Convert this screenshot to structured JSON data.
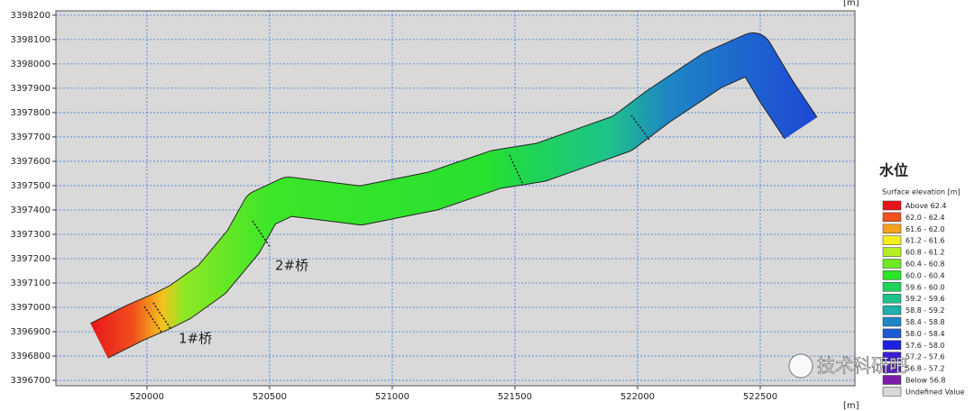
{
  "plot": {
    "x_unit": "[m]",
    "y_unit": "[m]",
    "xlim": [
      519629,
      522886
    ],
    "ylim": [
      3396678,
      3398218
    ],
    "xticks": [
      520000,
      520500,
      521000,
      521500,
      522000,
      522500
    ],
    "yticks": [
      3396700,
      3396800,
      3396900,
      3397000,
      3397100,
      3397200,
      3397300,
      3397400,
      3397500,
      3397600,
      3397700,
      3397800,
      3397900,
      3398000,
      3398100,
      3398200
    ],
    "grid": true,
    "labels": [
      "1#桥",
      "2#桥"
    ]
  },
  "legend": {
    "title": "水位",
    "subtitle": "Surface elevation [m]",
    "items": [
      {
        "label": "Above 62.4",
        "color": "#e8141b"
      },
      {
        "label": "62.0 - 62.4",
        "color": "#f0501c"
      },
      {
        "label": "61.6 - 62.0",
        "color": "#f5a21e"
      },
      {
        "label": "61.2 - 61.6",
        "color": "#f2ef1e"
      },
      {
        "label": "60.8 - 61.2",
        "color": "#b5ee22"
      },
      {
        "label": "60.4 - 60.8",
        "color": "#6ee824"
      },
      {
        "label": "60.0 - 60.4",
        "color": "#28e628"
      },
      {
        "label": "59.6 - 60.0",
        "color": "#1fd35a"
      },
      {
        "label": "59.2 - 59.6",
        "color": "#1ec28a"
      },
      {
        "label": "58.8 - 59.2",
        "color": "#1eaeab"
      },
      {
        "label": "58.4 - 58.8",
        "color": "#1e86c4"
      },
      {
        "label": "58.0 - 58.4",
        "color": "#1e5ad6"
      },
      {
        "label": "57.6 - 58.0",
        "color": "#1e22e0"
      },
      {
        "label": "57.2 - 57.6",
        "color": "#3c1ed2"
      },
      {
        "label": "56.8 - 57.2",
        "color": "#5a1ec0"
      },
      {
        "label": "Below 56.8",
        "color": "#7a1eaa"
      },
      {
        "label": "Undefined Value",
        "color": "#d8d8d8"
      }
    ]
  },
  "watermark": "技术科研吧"
}
